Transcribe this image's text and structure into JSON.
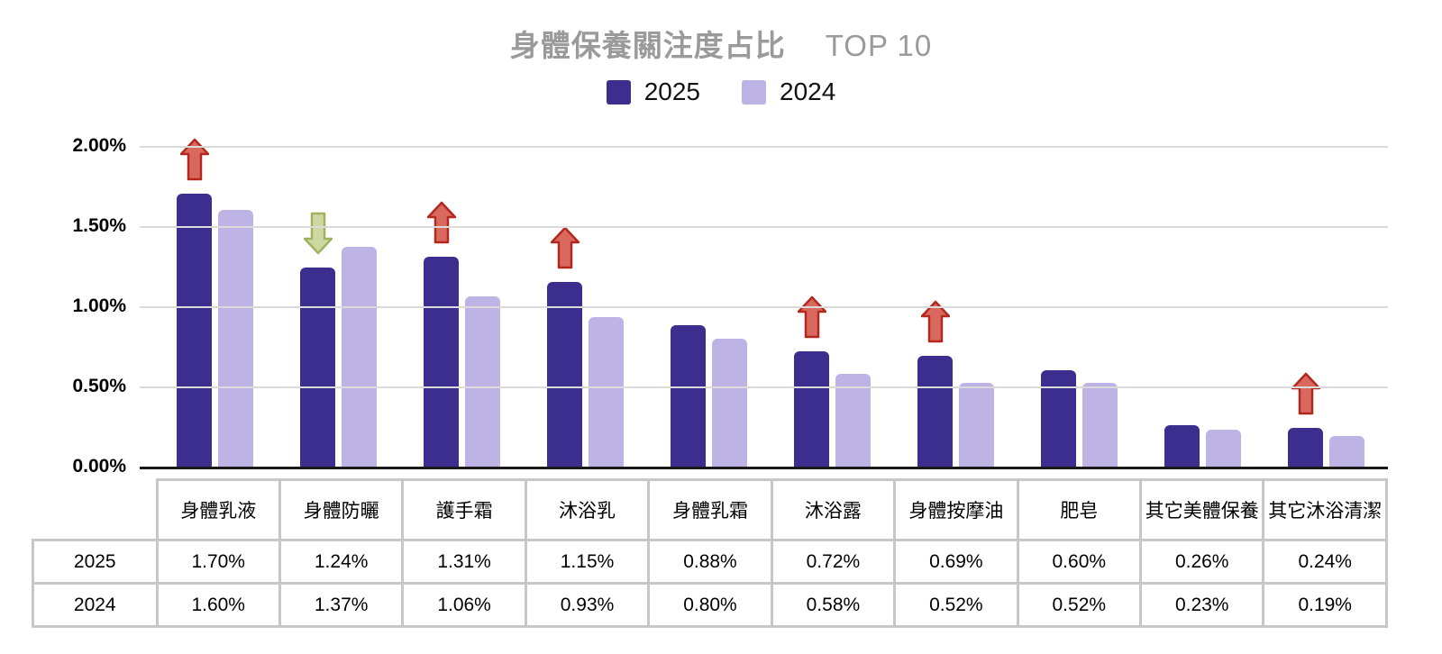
{
  "title": {
    "main": "身體保養關注度占比",
    "suffix": "TOP 10"
  },
  "legend": [
    {
      "label": "2025",
      "color": "#3b2e8e"
    },
    {
      "label": "2024",
      "color": "#bdb4e5"
    }
  ],
  "chart_data": {
    "type": "bar",
    "title": "身體保養關注度占比 TOP 10",
    "categories": [
      "身體乳液",
      "身體防曬",
      "護手霜",
      "沐浴乳",
      "身體乳霜",
      "沐浴露",
      "身體按摩油",
      "肥皂",
      "其它美體保養",
      "其它沐浴清潔"
    ],
    "series": [
      {
        "name": "2025",
        "color": "#3b2e8e",
        "values": [
          1.7,
          1.24,
          1.31,
          1.15,
          0.88,
          0.72,
          0.69,
          0.6,
          0.26,
          0.24
        ]
      },
      {
        "name": "2024",
        "color": "#bdb4e5",
        "values": [
          1.6,
          1.37,
          1.06,
          0.93,
          0.8,
          0.58,
          0.52,
          0.52,
          0.23,
          0.19
        ]
      }
    ],
    "arrows": [
      "up",
      "down",
      "up",
      "up",
      null,
      "up",
      "up",
      null,
      null,
      "up"
    ],
    "arrow_colors": {
      "up": {
        "fill": "#d9695f",
        "stroke": "#b3281e"
      },
      "down": {
        "fill": "#cdd9a0",
        "stroke": "#9fb35e"
      }
    },
    "xlabel": "",
    "ylabel": "",
    "ylim": [
      0,
      2.0
    ],
    "yticks": [
      "2.00%",
      "1.50%",
      "1.00%",
      "0.50%",
      "0.00%"
    ],
    "grid": true,
    "gridline_color": "#dadada",
    "axis_color": "#1a1a1a",
    "legend_position": "top"
  },
  "table": {
    "row_labels": [
      "2025",
      "2024"
    ],
    "columns": [
      "身體乳液",
      "身體防曬",
      "護手霜",
      "沐浴乳",
      "身體乳霜",
      "沐浴露",
      "身體按摩油",
      "肥皂",
      "其它美體保養",
      "其它沐浴清潔"
    ],
    "rows": [
      [
        "1.70%",
        "1.24%",
        "1.31%",
        "1.15%",
        "0.88%",
        "0.72%",
        "0.69%",
        "0.60%",
        "0.26%",
        "0.24%"
      ],
      [
        "1.60%",
        "1.37%",
        "1.06%",
        "0.93%",
        "0.80%",
        "0.58%",
        "0.52%",
        "0.52%",
        "0.23%",
        "0.19%"
      ]
    ]
  }
}
